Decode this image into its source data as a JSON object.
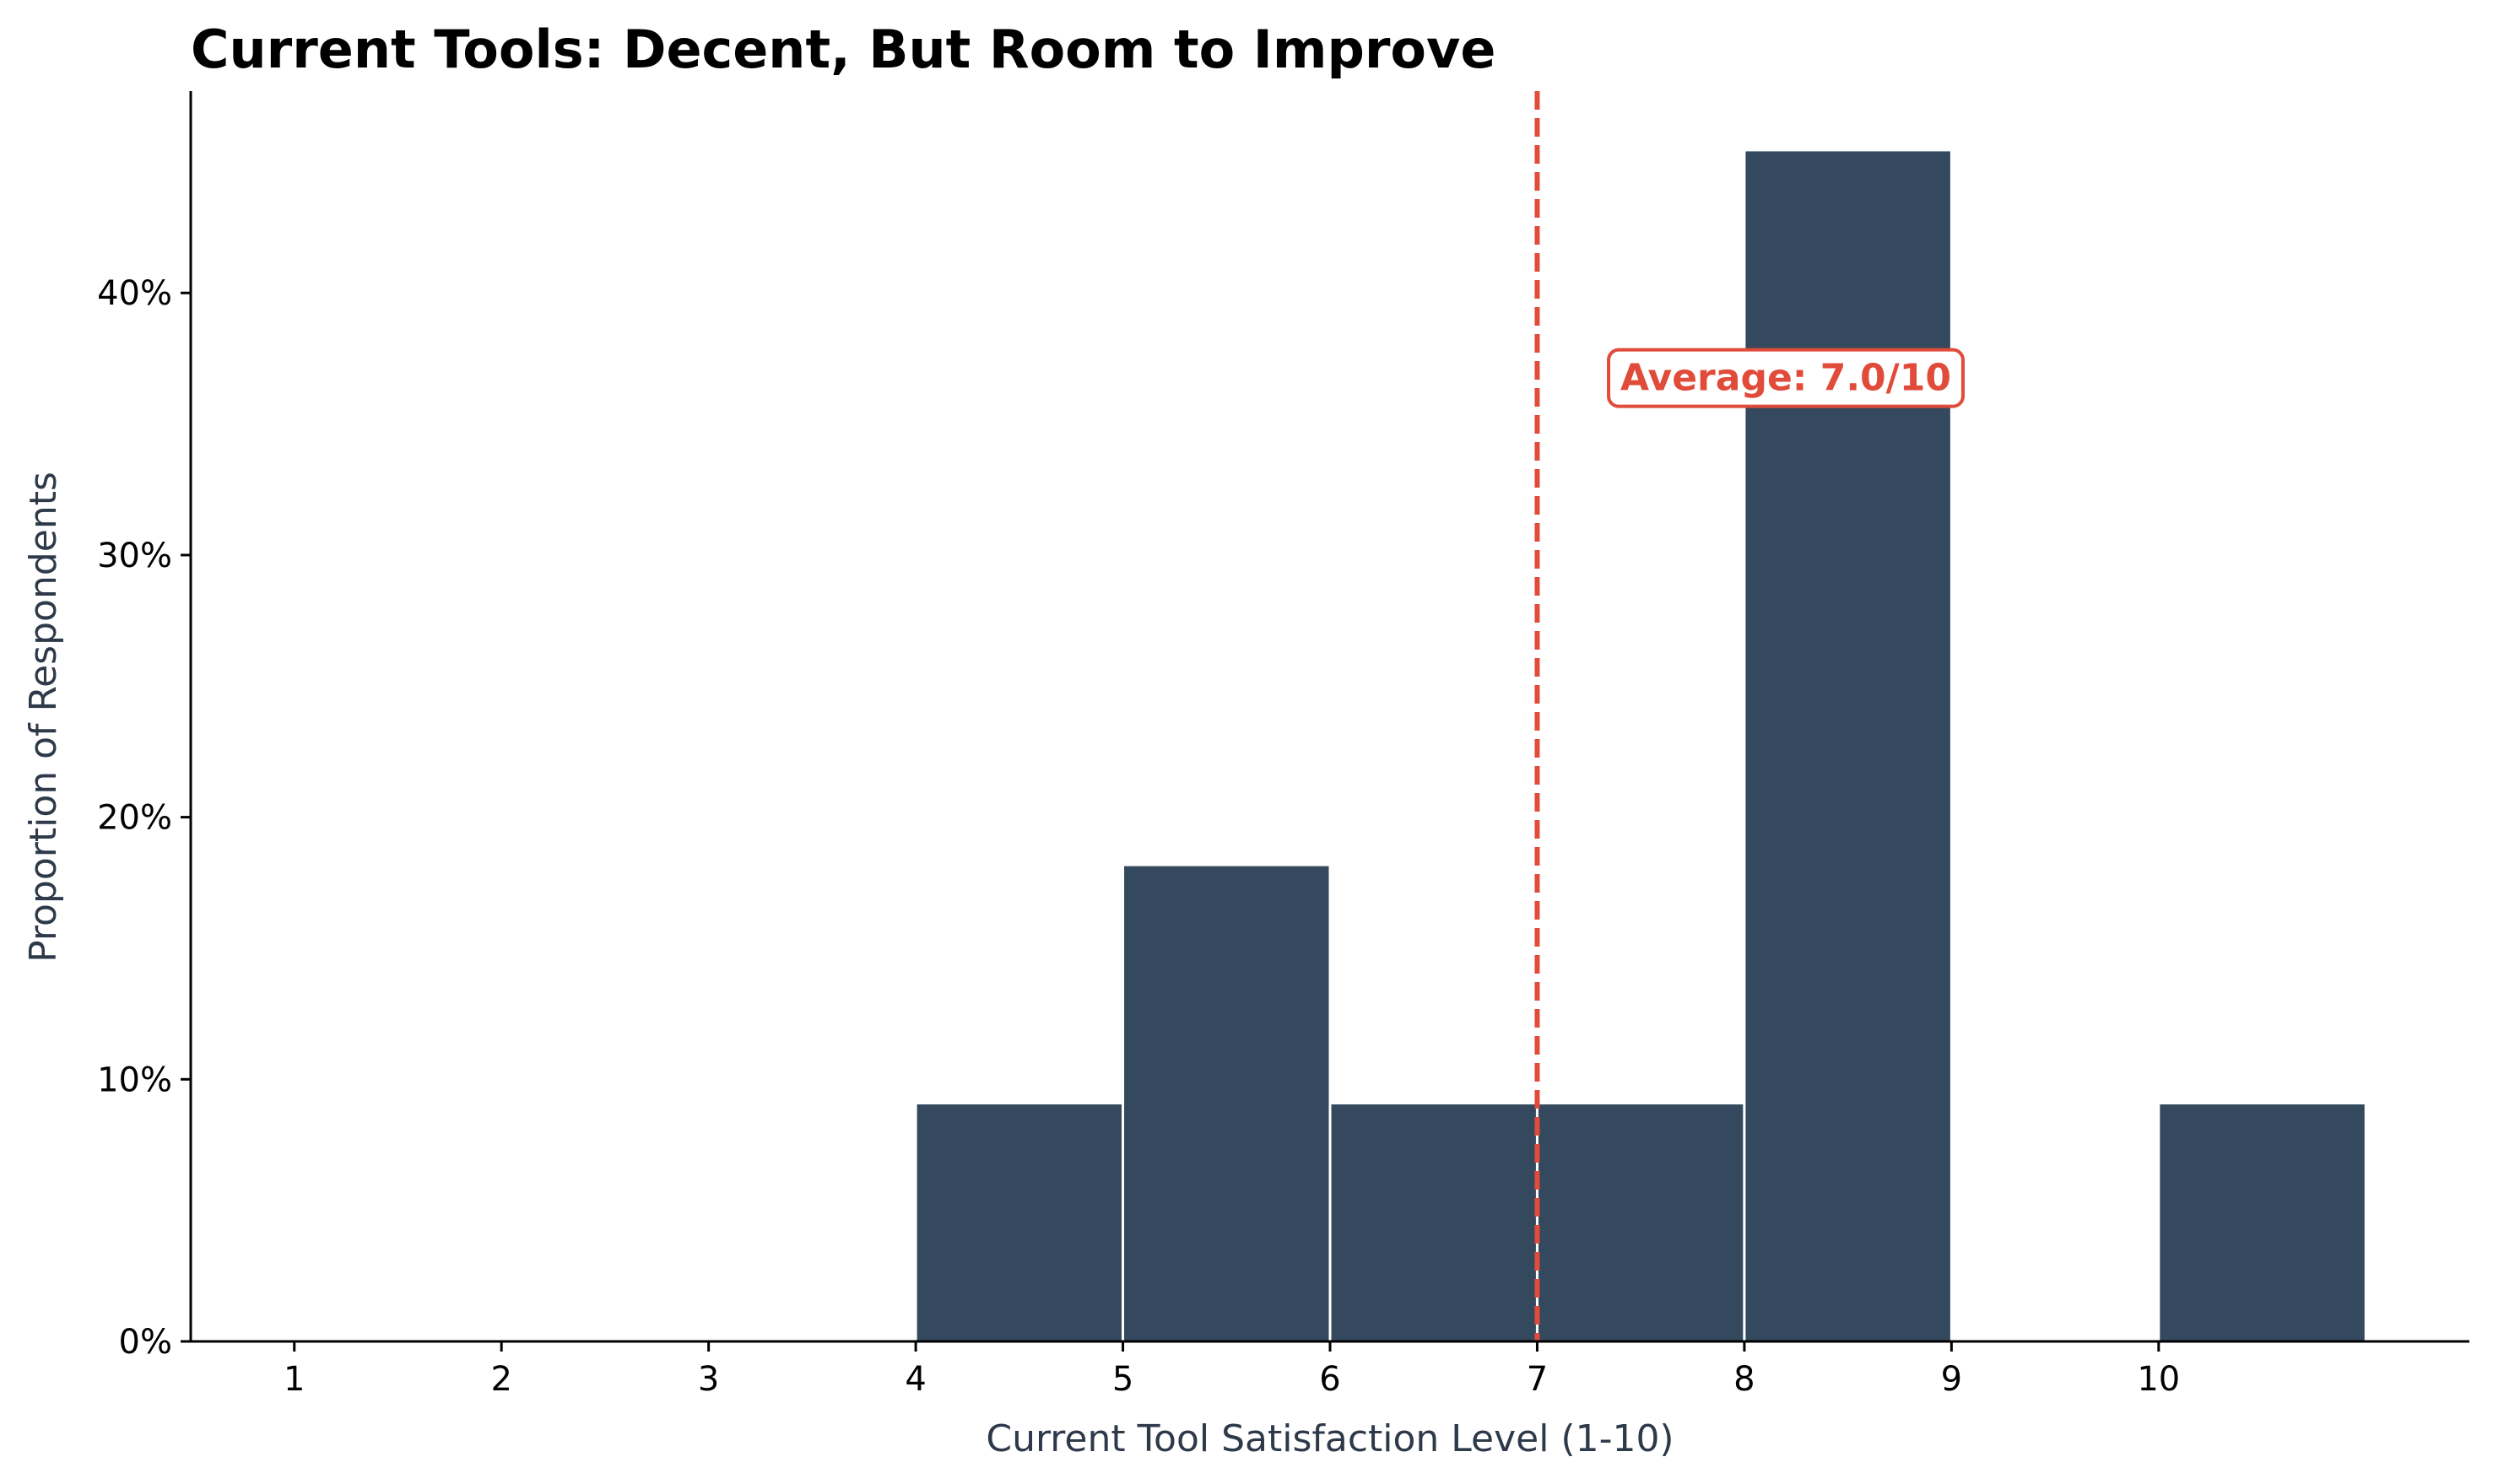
{
  "chart_data": {
    "type": "bar",
    "title": "Current Tools: Decent, But Room to Improve",
    "xlabel": "Current Tool Satisfaction Level (1-10)",
    "ylabel": "Proportion of Respondents",
    "xlim": [
      0.5,
      11.5
    ],
    "ylim": [
      0,
      0.477
    ],
    "x_ticks": [
      1,
      2,
      3,
      4,
      5,
      6,
      7,
      8,
      9,
      10
    ],
    "x_tick_labels": [
      "1",
      "2",
      "3",
      "4",
      "5",
      "6",
      "7",
      "8",
      "9",
      "10"
    ],
    "y_ticks": [
      0,
      0.1,
      0.2,
      0.3,
      0.4
    ],
    "y_tick_labels": [
      "0%",
      "10%",
      "20%",
      "30%",
      "40%"
    ],
    "bins": [
      {
        "x0": 4,
        "x1": 5,
        "value": 0.0909
      },
      {
        "x0": 5,
        "x1": 6,
        "value": 0.1818
      },
      {
        "x0": 6,
        "x1": 7,
        "value": 0.0909
      },
      {
        "x0": 7,
        "x1": 8,
        "value": 0.0909
      },
      {
        "x0": 8,
        "x1": 9,
        "value": 0.4545
      },
      {
        "x0": 10,
        "x1": 11,
        "value": 0.0909
      }
    ],
    "bar_color": "#34495e",
    "bar_edge_color": "#ffffff",
    "average": {
      "x": 7.0,
      "label": "Average: 7.0/10",
      "label_x": 8.2,
      "label_y": 0.368,
      "color": "#e04b3a"
    },
    "grid": false,
    "legend": "none"
  }
}
